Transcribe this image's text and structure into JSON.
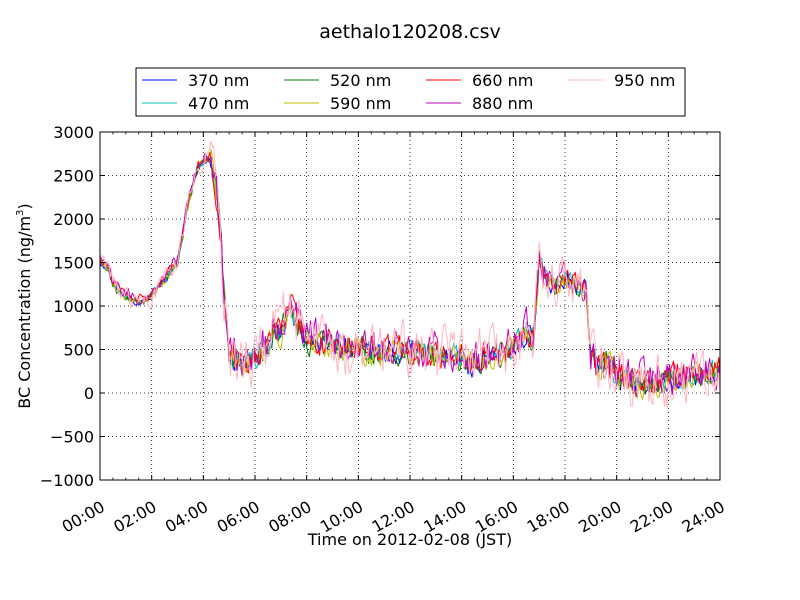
{
  "chart_data": {
    "type": "line",
    "title": "aethalo120208.csv",
    "xlabel": "Time on 2012-02-08 (JST)",
    "ylabel": "BC Concentration (ng/m",
    "ylabel_sup": "3",
    "ylabel_close": ")",
    "xlim_hours": [
      0,
      24
    ],
    "ylim": [
      -1000,
      3000
    ],
    "grid": true,
    "legend_position": "top-center",
    "x_ticks": [
      "00:00",
      "02:00",
      "04:00",
      "06:00",
      "08:00",
      "10:00",
      "12:00",
      "14:00",
      "16:00",
      "18:00",
      "20:00",
      "22:00",
      "24:00"
    ],
    "y_ticks": [
      "3000",
      "2500",
      "2000",
      "1500",
      "1000",
      "500",
      "0",
      "−500",
      "−1000"
    ],
    "baseline_hours": [
      0.0,
      0.3,
      0.6,
      1.0,
      1.5,
      2.0,
      2.5,
      3.0,
      3.5,
      3.8,
      4.0,
      4.3,
      4.6,
      4.8,
      5.0,
      5.5,
      6.0,
      6.5,
      7.0,
      7.3,
      7.6,
      8.0,
      9.0,
      10.0,
      11.0,
      12.0,
      13.0,
      14.0,
      14.3,
      15.0,
      16.0,
      16.5,
      16.8,
      17.0,
      17.3,
      17.6,
      18.0,
      18.3,
      18.8,
      19.0,
      19.3,
      19.6,
      20.0,
      21.0,
      22.0,
      23.0,
      24.0
    ],
    "baseline_values": [
      1500,
      1450,
      1200,
      1100,
      1050,
      1100,
      1300,
      1500,
      2300,
      2600,
      2650,
      2700,
      2100,
      1200,
      400,
      350,
      400,
      550,
      700,
      1000,
      800,
      600,
      550,
      500,
      450,
      480,
      450,
      400,
      300,
      450,
      500,
      700,
      650,
      1500,
      1300,
      1200,
      1300,
      1250,
      1200,
      400,
      300,
      350,
      200,
      100,
      150,
      200,
      250
    ],
    "series": [
      {
        "name": "370 nm",
        "color": "#0000ff",
        "noise": 110,
        "offset": 0
      },
      {
        "name": "470 nm",
        "color": "#00bfbf",
        "noise": 110,
        "offset": 10
      },
      {
        "name": "520 nm",
        "color": "#008000",
        "noise": 120,
        "offset": -10
      },
      {
        "name": "590 nm",
        "color": "#bfbf00",
        "noise": 130,
        "offset": 0
      },
      {
        "name": "660 nm",
        "color": "#ff0000",
        "noise": 140,
        "offset": 20
      },
      {
        "name": "880 nm",
        "color": "#bf00bf",
        "noise": 180,
        "offset": 30
      },
      {
        "name": "950 nm",
        "color": "#ffb6c1",
        "noise": 260,
        "offset": 0
      }
    ]
  }
}
